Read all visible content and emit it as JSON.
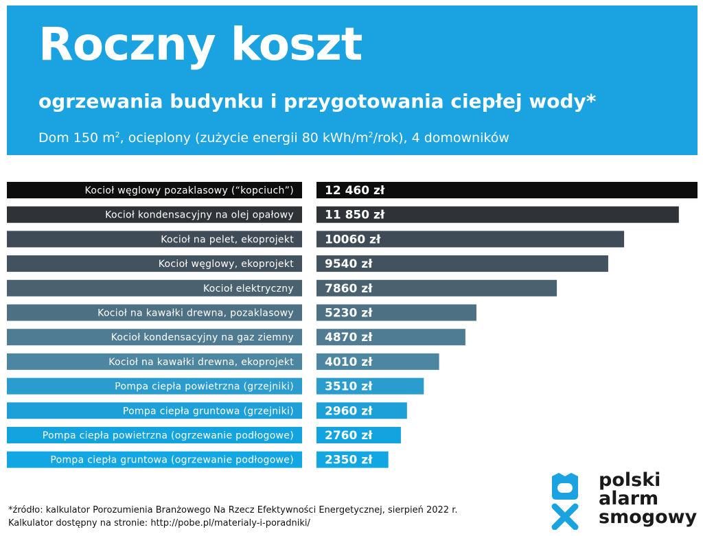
{
  "header": {
    "title": "Roczny koszt",
    "subtitle": "ogrzewania budynku i przygotowania ciepłej wody*",
    "desc_part1": "Dom 150 m",
    "desc_sup1": "2",
    "desc_part2": ", ocieplony (zużycie energii 80 kWh/m",
    "desc_sup2": "2",
    "desc_part3": "/rok), 4 domowników"
  },
  "chart_data": {
    "type": "bar",
    "orientation": "horizontal",
    "title": "Roczny koszt ogrzewania budynku i przygotowania ciepłej wody*",
    "xlabel": "",
    "ylabel": "",
    "xlim": [
      0,
      12460
    ],
    "unit": "zł",
    "categories": [
      "Kocioł węglowy pozaklasowy (“kopciuch”)",
      "Kocioł kondensacyjny na olej opałowy",
      "Kocioł na pelet, ekoprojekt",
      "Kocioł węglowy, ekoprojekt",
      "Kocioł elektryczny",
      "Kocioł na kawałki drewna, pozaklasowy",
      "Kocioł kondensacyjny na gaz ziemny",
      "Kocioł na kawałki drewna, ekoprojekt",
      "Pompa ciepła powietrzna (grzejniki)",
      "Pompa ciepła gruntowa (grzejniki)",
      "Pompa ciepła powietrzna (ogrzewanie podłogowe)",
      "Pompa ciepła gruntowa (ogrzewanie podłogowe)"
    ],
    "values": [
      12460,
      11850,
      10060,
      9540,
      7860,
      5230,
      4870,
      4010,
      3510,
      2960,
      2760,
      2350
    ],
    "value_labels": [
      "12 460 zł",
      "11 850 zł",
      "10060 zł",
      "9540 zł",
      "7860 zł",
      "5230 zł",
      "4870 zł",
      "4010 zł",
      "3510 zł",
      "2960 zł",
      "2760 zł",
      "2350 zł"
    ],
    "colors": [
      "#0d0d0d",
      "#2f3338",
      "#3f4b56",
      "#42525f",
      "#4a6170",
      "#4d7083",
      "#4f7c92",
      "#4c86a1",
      "#2a9ccd",
      "#1d9fd8",
      "#13a3df",
      "#12a7e3"
    ],
    "grid": false,
    "legend": "none"
  },
  "footer": {
    "line1": "*źródło: kalkulator Porozumienia Branżowego Na Rzecz Efektywności Energetycznej, sierpień 2022 r.",
    "line2": "Kalkulator dostępny na stronie: http://pobe.pl/materialy-i-poradniki/"
  },
  "logo": {
    "line1": "polski",
    "line2": "alarm",
    "line3": "smogowy",
    "color": "#1aa3e0"
  }
}
